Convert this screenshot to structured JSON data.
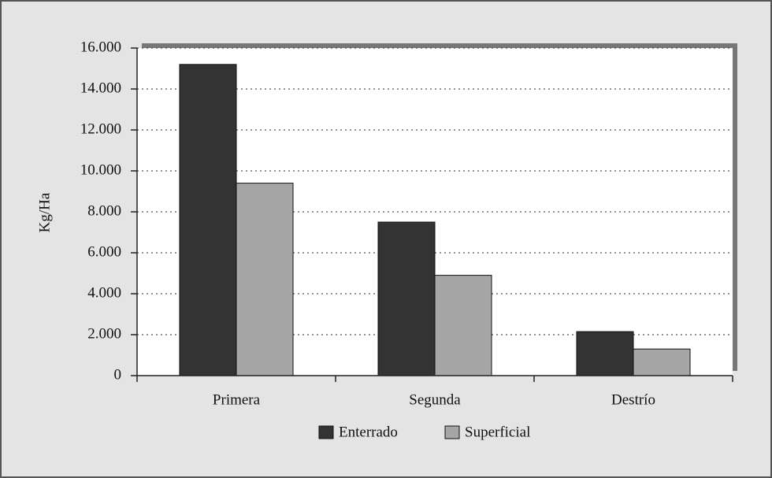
{
  "chart_data": {
    "type": "bar",
    "y_label": "Kg/Ha",
    "categories": [
      "Primera",
      "Segunda",
      "Destrío"
    ],
    "series": [
      {
        "name": "Enterrado",
        "color": "#333333",
        "values": [
          15200,
          7500,
          2150
        ]
      },
      {
        "name": "Superficial",
        "color": "#a6a6a6",
        "values": [
          9400,
          4900,
          1300
        ]
      }
    ],
    "ylim": [
      0,
      16000
    ],
    "yticks": [
      0,
      {
        "value": 2000,
        "label": "2.000"
      },
      {
        "value": 4000,
        "label": "4.000"
      },
      {
        "value": 6000,
        "label": "6.000"
      },
      {
        "value": 8000,
        "label": "8.000"
      },
      {
        "value": 10000,
        "label": "10.000"
      },
      {
        "value": 12000,
        "label": "12.000"
      },
      {
        "value": 14000,
        "label": "14.000"
      },
      {
        "value": 16000,
        "label": "16.000"
      }
    ],
    "grid": true,
    "legend": "bottom"
  }
}
